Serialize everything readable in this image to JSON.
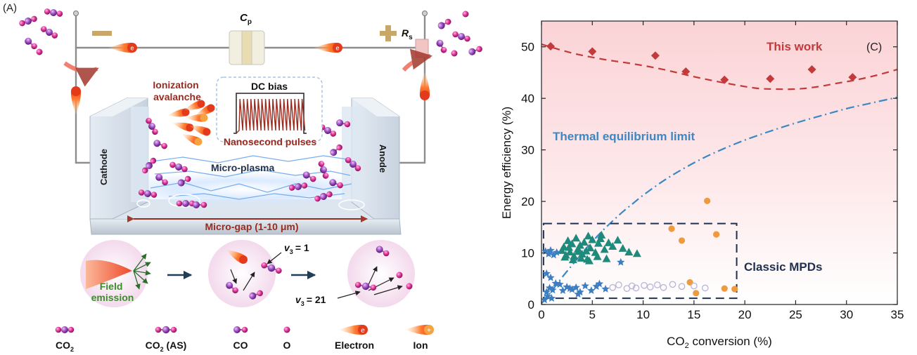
{
  "panel_a": {
    "panel_label": "(A)",
    "capacitor_label": "C",
    "capacitor_sub": "p",
    "resistor_label": "R",
    "resistor_sub": "s",
    "minus_sign": "−",
    "plus_sign": "+",
    "ionization_line1": "Ionization",
    "ionization_line2": "avalanche",
    "dc_bias": "DC bias",
    "ns_pulses": "Nanosecond pulses",
    "cathode": "Cathode",
    "anode": "Anode",
    "micro_plasma": "Micro-plasma",
    "micro_gap": "Micro-gap (1-10 μm)",
    "field_emission_1": "Field",
    "field_emission_2": "emission",
    "v3_label": "v",
    "v3_sub": "3",
    "v3_eq1": "= 1",
    "v3_eq21": "= 21",
    "electron_symbol": "e",
    "ion_symbol": "+",
    "legend": [
      {
        "text": "CO",
        "sub": "2"
      },
      {
        "text": "CO",
        "sub": "2",
        "suffix": " (AS)"
      },
      {
        "text": "CO",
        "sub": "",
        "suffix": ""
      },
      {
        "text": "O",
        "sub": "",
        "suffix": ""
      },
      {
        "text": "Electron",
        "sub": "",
        "suffix": ""
      },
      {
        "text": "Ion",
        "sub": "",
        "suffix": ""
      }
    ]
  },
  "colors": {
    "red_label": "#9b2a1f",
    "navy": "#1f3050",
    "pink_atom": "#e0359a",
    "purple_atom": "#a24ec7",
    "wire": "#8d8d8d",
    "thermal": "#3b88c3",
    "this_work": "#c23a3a",
    "teal": "#1f8a7b",
    "orange": "#ef9a3c",
    "blue_star": "#3d7ec0",
    "lavender": "#b8b3d8",
    "green_text": "#3c8c2c"
  },
  "chart_data": {
    "type": "scatter",
    "panel_label": "(C)",
    "xlabel": "CO",
    "xlabel_sub": "2",
    "xlabel_rest": " conversion (%)",
    "ylabel": "Energy efficiency (%)",
    "xlim": [
      0,
      35
    ],
    "ylim": [
      0,
      55
    ],
    "xticks": [
      0,
      5,
      10,
      15,
      20,
      25,
      30,
      35
    ],
    "yticks": [
      0,
      10,
      20,
      30,
      40,
      50
    ],
    "annotations": {
      "this_work": "This work",
      "thermal": "Thermal equilibrium limit",
      "classic": "Classic MPDs"
    },
    "classic_box": {
      "x": [
        0.2,
        19.2
      ],
      "y": [
        1.2,
        15.7
      ]
    },
    "series": [
      {
        "name": "This work",
        "marker": "diamond",
        "x": [
          0.9,
          5.0,
          11.2,
          14.2,
          18.0,
          22.5,
          26.6,
          30.6
        ],
        "y": [
          50.1,
          49.1,
          48.3,
          45.2,
          43.6,
          43.8,
          45.6,
          44.1
        ]
      },
      {
        "name": "teal triangles",
        "marker": "triangle",
        "x": [
          2.0,
          2.2,
          2.4,
          2.6,
          2.8,
          3.0,
          3.2,
          3.4,
          3.6,
          3.8,
          4.0,
          4.2,
          4.4,
          4.6,
          4.8,
          5.0,
          5.3,
          5.6,
          5.9,
          6.2,
          6.6,
          7.0,
          7.5,
          8.0,
          8.6,
          9.4,
          2.3,
          3.1,
          3.9,
          4.7,
          5.5,
          6.4,
          2.7,
          3.6,
          4.5,
          5.8
        ],
        "y": [
          10.5,
          11.2,
          9.6,
          12.4,
          10.2,
          11.8,
          9.4,
          12.9,
          10.8,
          11.5,
          9.8,
          12.1,
          10.4,
          13.3,
          11.0,
          12.6,
          10.1,
          11.9,
          13.5,
          10.7,
          12.0,
          11.3,
          12.5,
          10.9,
          10.2,
          9.9,
          9.2,
          8.7,
          9.0,
          8.5,
          9.3,
          8.9,
          11.1,
          10.3,
          8.8,
          12.8
        ]
      },
      {
        "name": "orange circles",
        "marker": "circle",
        "x": [
          16.3,
          12.8,
          13.8,
          17.2,
          14.6,
          15.2,
          18.0,
          19.0
        ],
        "y": [
          20.1,
          14.7,
          12.4,
          13.6,
          4.3,
          2.2,
          3.1,
          3.0
        ]
      },
      {
        "name": "blue stars",
        "marker": "star",
        "x": [
          0.4,
          0.7,
          0.9,
          1.2,
          1.5,
          1.8,
          2.1,
          2.5,
          3.0,
          3.4,
          3.8,
          4.3,
          4.9,
          5.4,
          0.5,
          0.8,
          1.1,
          0.6,
          1.0,
          1.4,
          0.3,
          2.8,
          3.6,
          5.7,
          6.3,
          7.8,
          0.5,
          0.9
        ],
        "y": [
          10.3,
          9.8,
          10.5,
          9.6,
          10.1,
          3.9,
          2.7,
          3.4,
          2.9,
          3.3,
          2.4,
          3.6,
          2.7,
          3.5,
          2.4,
          3.2,
          2.8,
          1.6,
          1.2,
          4.1,
          0.9,
          3.1,
          2.0,
          4.0,
          3.0,
          8.2,
          6.0,
          5.2
        ]
      },
      {
        "name": "lavender open",
        "marker": "open-circle",
        "x": [
          7.0,
          7.6,
          8.4,
          8.9,
          9.3,
          10.1,
          10.7,
          11.4,
          12.0,
          12.9,
          13.8,
          15.0,
          16.1
        ],
        "y": [
          3.3,
          3.8,
          3.1,
          3.6,
          3.2,
          3.7,
          3.4,
          3.8,
          3.3,
          3.9,
          3.5,
          3.6,
          3.2
        ]
      }
    ],
    "curves": [
      {
        "name": "this-work-fit",
        "style": "dashed",
        "x": [
          0,
          3,
          6,
          9,
          12,
          15,
          18,
          21,
          23,
          25,
          27,
          29,
          31,
          33,
          35
        ],
        "y": [
          50.5,
          48.8,
          47.6,
          46.7,
          45.6,
          44.2,
          43.0,
          42.0,
          41.8,
          41.8,
          42.2,
          42.9,
          43.6,
          44.5,
          45.6
        ]
      },
      {
        "name": "thermal-fit",
        "style": "dashdot",
        "x": [
          0,
          1,
          2,
          3,
          4,
          5,
          6,
          7,
          8,
          9,
          10,
          12,
          14,
          16,
          18,
          20,
          22,
          24,
          26,
          28,
          30,
          32,
          35
        ],
        "y": [
          0.2,
          2.6,
          5.2,
          7.6,
          10.0,
          12.2,
          14.3,
          16.2,
          18.0,
          19.6,
          21.2,
          24.0,
          26.4,
          28.5,
          30.3,
          31.9,
          33.3,
          34.6,
          35.8,
          36.9,
          38.0,
          38.9,
          40.2
        ]
      }
    ]
  }
}
